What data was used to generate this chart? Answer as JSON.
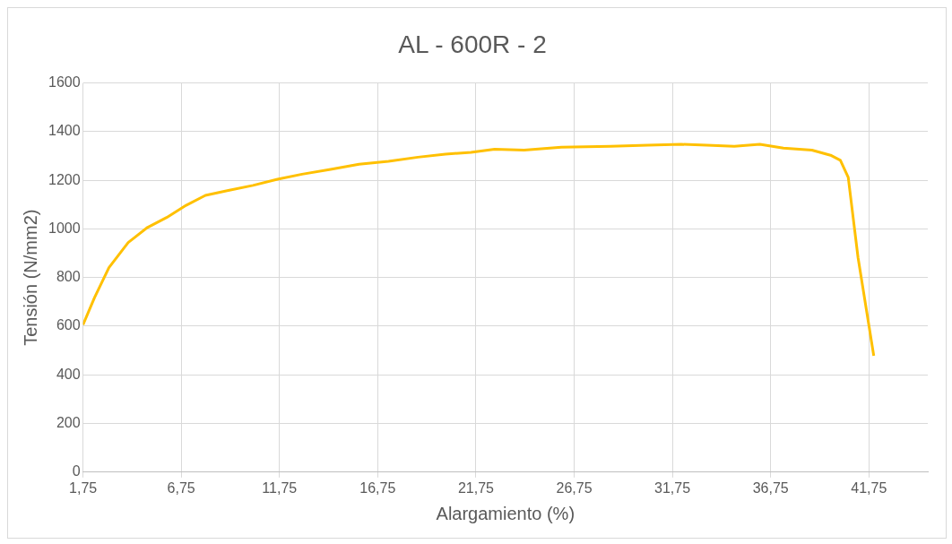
{
  "chart_data": {
    "type": "line",
    "title": "AL - 600R - 2",
    "xlabel": "Alargamiento (%)",
    "ylabel": "Tensión (N/mm2)",
    "x": [
      1.75,
      2.34,
      3.07,
      4.05,
      5.03,
      6.01,
      7.0,
      7.98,
      9.2,
      10.4,
      11.65,
      12.9,
      14.35,
      15.8,
      17.3,
      18.8,
      20.2,
      21.5,
      22.7,
      24.2,
      26.1,
      28.6,
      30.5,
      32.2,
      33.5,
      34.9,
      36.2,
      37.4,
      38.85,
      39.8,
      40.3,
      40.7,
      41.2,
      42.0
    ],
    "series": [
      {
        "color": "#ffc000",
        "values": [
          606,
          718,
          841,
          944,
          1006,
          1047,
          1097,
          1138,
          1159,
          1179,
          1204,
          1225,
          1245,
          1266,
          1278,
          1295,
          1307,
          1315,
          1328,
          1324,
          1336,
          1340,
          1344,
          1348,
          1344,
          1340,
          1348,
          1332,
          1324,
          1303,
          1282,
          1212,
          882,
          478
        ]
      }
    ],
    "xlim": [
      1.75,
      44.75
    ],
    "xticks": [
      {
        "value": 1.75,
        "label": "1,75"
      },
      {
        "value": 6.75,
        "label": "6,75"
      },
      {
        "value": 11.75,
        "label": "11,75"
      },
      {
        "value": 16.75,
        "label": "16,75"
      },
      {
        "value": 21.75,
        "label": "21,75"
      },
      {
        "value": 26.75,
        "label": "26,75"
      },
      {
        "value": 31.75,
        "label": "31,75"
      },
      {
        "value": 36.75,
        "label": "36,75"
      },
      {
        "value": 41.75,
        "label": "41,75"
      }
    ],
    "ylim": [
      0,
      1600
    ],
    "yticks": [
      0,
      200,
      400,
      600,
      800,
      1000,
      1200,
      1400,
      1600
    ],
    "grid": true,
    "legend": false,
    "marker": "none",
    "line_style": "solid"
  }
}
